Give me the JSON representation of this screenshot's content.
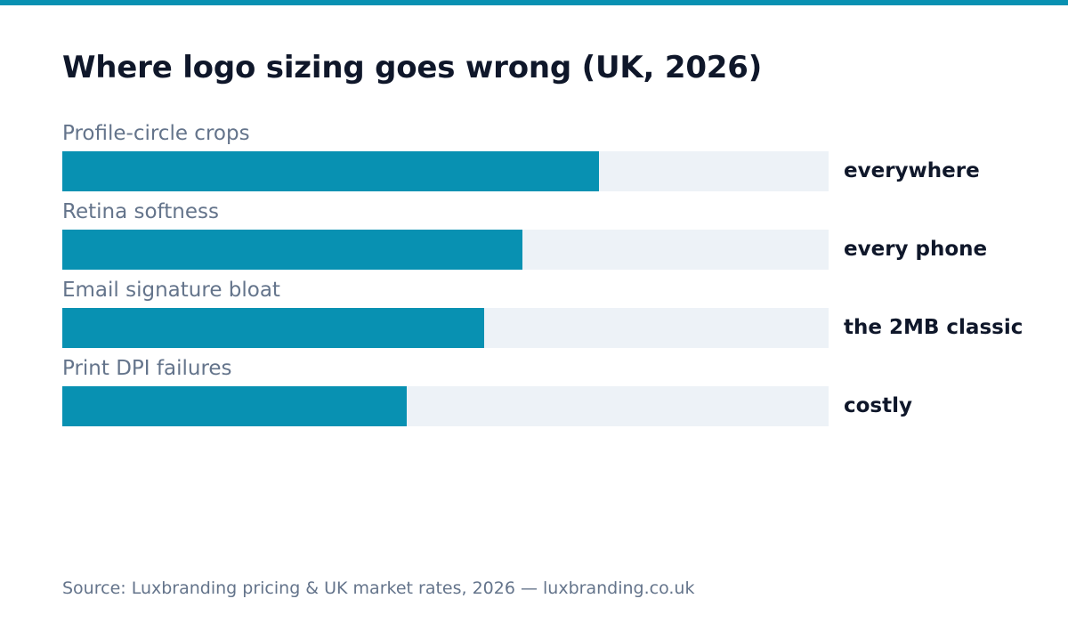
{
  "title": "Where logo sizing goes wrong (UK, 2026)",
  "source": "Source: Luxbranding pricing & UK market rates, 2026 — luxbranding.co.uk",
  "colors": {
    "accent": "#0891b2",
    "track": "#edf2f7",
    "title": "#0f172a",
    "muted": "#64748b"
  },
  "chart_data": {
    "type": "bar",
    "orientation": "horizontal",
    "title": "Where logo sizing goes wrong (UK, 2026)",
    "categories": [
      "Profile-circle crops",
      "Retina softness",
      "Email signature bloat",
      "Print DPI failures"
    ],
    "values": [
      0.7,
      0.6,
      0.55,
      0.45
    ],
    "value_labels": [
      "everywhere",
      "every phone",
      "the 2MB classic",
      "costly"
    ],
    "xlim": [
      0,
      1
    ],
    "grid": false,
    "legend": "none"
  }
}
